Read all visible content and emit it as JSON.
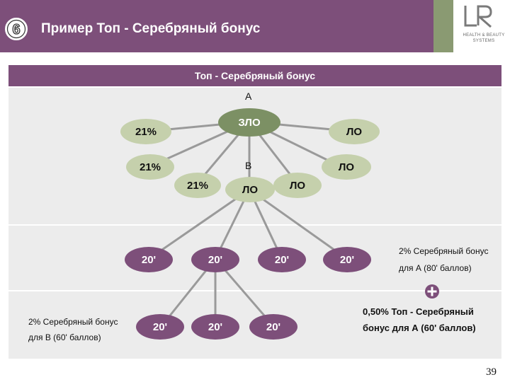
{
  "header": {
    "slide_number": "6",
    "title": "Пример Топ - Серебряный бонус",
    "logo_lines": [
      "HEALTH & BEAUTY",
      "SYSTEMS"
    ]
  },
  "colors": {
    "header_purple": "#7d4f7a",
    "accent_green": "#8a9a72",
    "node_light_green": "#c5d0ac",
    "node_dark_green": "#7c9064",
    "node_purple": "#7d4f7a",
    "band_gray": "#ececec"
  },
  "panel": {
    "title": "Топ - Серебряный бонус"
  },
  "diagram": {
    "label_a": "А",
    "label_b": "В",
    "root": "ЗЛО",
    "left_nodes": [
      "21%",
      "21%",
      "21%"
    ],
    "right_nodes": [
      "ЛО",
      "ЛО",
      "ЛО"
    ],
    "center_node": "ЛО",
    "row2_nodes": [
      "20'",
      "20'",
      "20'",
      "20'"
    ],
    "row3_nodes": [
      "20'",
      "20'",
      "20'"
    ]
  },
  "notes": {
    "right_line1": "2% Серебряный бонус",
    "right_line2": "для  А (80' баллов)",
    "left_line1": "2% Серебряный бонус",
    "left_line2": "для  В (60' баллов)",
    "bold_line1": "0,50% Топ  - Серебряный",
    "bold_line2": "бонус для  А (60' баллов)"
  },
  "page_number": "39"
}
